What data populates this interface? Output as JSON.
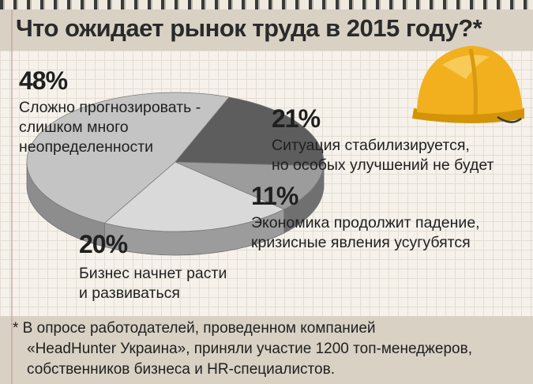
{
  "chart_data": {
    "type": "pie",
    "title": "Что ожидает рынок труда в 2015 году?*",
    "slices": [
      {
        "value": 48,
        "label": "48%",
        "text": [
          "Сложно прогнозировать -",
          "слишком много",
          "неопределенности"
        ],
        "color": "#c4c4c4"
      },
      {
        "value": 21,
        "label": "21%",
        "text": [
          "Ситуация стабилизируется,",
          "но особых улучшений не будет"
        ],
        "color": "#d9d9d9"
      },
      {
        "value": 11,
        "label": "11%",
        "text": [
          "Экономика продолжит падение,",
          "кризисные явления усугубятся"
        ],
        "color": "#9c9c9c"
      },
      {
        "value": 20,
        "label": "20%",
        "text": [
          "Бизнес начнет расти",
          "и развиваться"
        ],
        "color": "#5d5d5d"
      }
    ]
  },
  "footnote": [
    "* В опросе работодателей, проведенном компанией",
    "«HeadHunter Украина», приняли участие 1200 топ-менеджеров,",
    "собственников бизнеса и HR-специалистов."
  ],
  "colors": {
    "hat": "#f2b01e",
    "background": "#efe9df",
    "strip": "#d8d1c4"
  },
  "icons": {
    "hat": "hard-hat-icon"
  }
}
